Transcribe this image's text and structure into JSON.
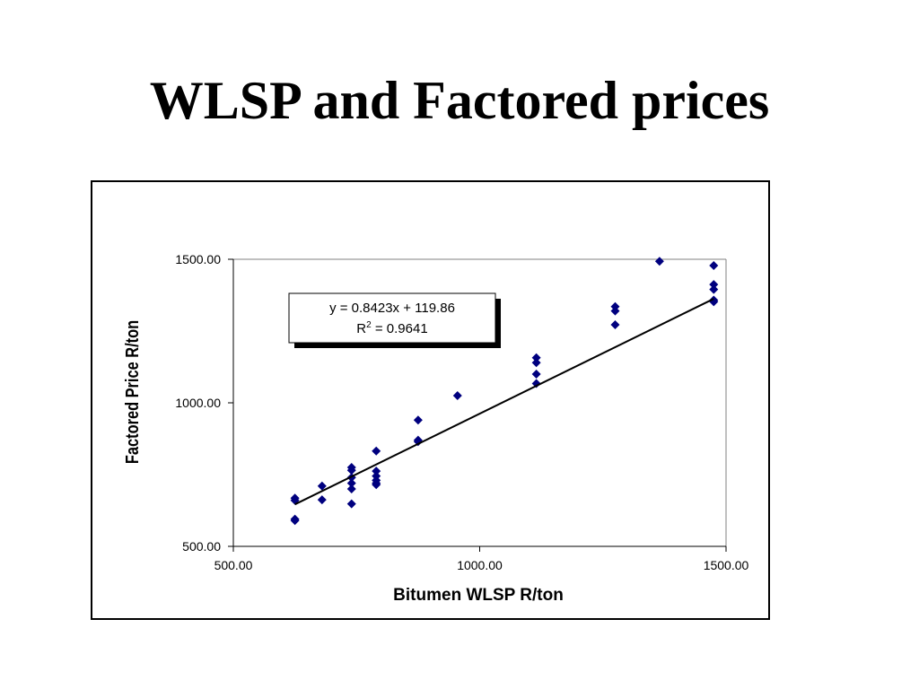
{
  "slide": {
    "title": "WLSP and Factored prices"
  },
  "chart_data": {
    "type": "scatter",
    "title": "",
    "xlabel": "Bitumen WLSP  R/ton",
    "ylabel": "Factored Price R/ton",
    "xlim": [
      500,
      1500
    ],
    "ylim": [
      500,
      1500
    ],
    "x_ticks": [
      "500.00",
      "1000.00",
      "1500.00"
    ],
    "y_ticks": [
      "500.00",
      "1000.00",
      "1500.00"
    ],
    "grid": false,
    "legend": "none",
    "marker_color": "#00007f",
    "trendline": {
      "slope": 0.8423,
      "intercept": 119.86,
      "x_range": [
        625,
        1475
      ],
      "color": "#000000"
    },
    "annotation": {
      "equation": "y = 0.8423x + 119.86",
      "r2_prefix": "R",
      "r2_sup": "2",
      "r2_value": " = 0.9641"
    },
    "points": [
      {
        "x": 625,
        "y": 668
      },
      {
        "x": 625,
        "y": 660
      },
      {
        "x": 625,
        "y": 595
      },
      {
        "x": 625,
        "y": 590
      },
      {
        "x": 680,
        "y": 710
      },
      {
        "x": 680,
        "y": 662
      },
      {
        "x": 740,
        "y": 775
      },
      {
        "x": 740,
        "y": 765
      },
      {
        "x": 740,
        "y": 740
      },
      {
        "x": 740,
        "y": 720
      },
      {
        "x": 740,
        "y": 700
      },
      {
        "x": 740,
        "y": 648
      },
      {
        "x": 790,
        "y": 832
      },
      {
        "x": 790,
        "y": 762
      },
      {
        "x": 790,
        "y": 745
      },
      {
        "x": 790,
        "y": 730
      },
      {
        "x": 790,
        "y": 720
      },
      {
        "x": 790,
        "y": 715
      },
      {
        "x": 875,
        "y": 940
      },
      {
        "x": 875,
        "y": 870
      },
      {
        "x": 875,
        "y": 865
      },
      {
        "x": 955,
        "y": 1025
      },
      {
        "x": 1115,
        "y": 1157
      },
      {
        "x": 1115,
        "y": 1140
      },
      {
        "x": 1115,
        "y": 1100
      },
      {
        "x": 1115,
        "y": 1067
      },
      {
        "x": 1275,
        "y": 1335
      },
      {
        "x": 1275,
        "y": 1320
      },
      {
        "x": 1275,
        "y": 1272
      },
      {
        "x": 1365,
        "y": 1493
      },
      {
        "x": 1475,
        "y": 1478
      },
      {
        "x": 1475,
        "y": 1412
      },
      {
        "x": 1475,
        "y": 1395
      },
      {
        "x": 1475,
        "y": 1358
      },
      {
        "x": 1475,
        "y": 1352
      }
    ]
  }
}
